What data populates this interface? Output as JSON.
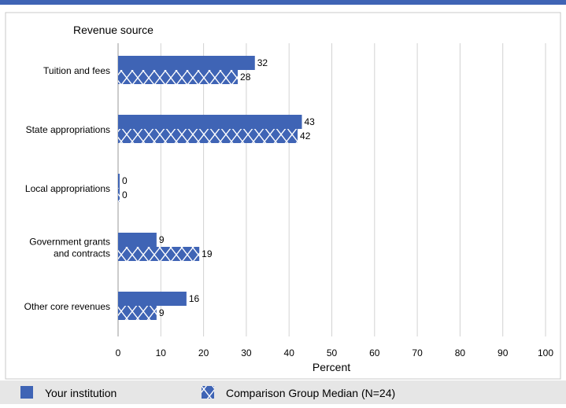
{
  "chart_data": {
    "type": "bar",
    "orientation": "horizontal",
    "title": "Revenue source",
    "xlabel": "Percent",
    "ylabel": "",
    "xlim": [
      0,
      100
    ],
    "xticks": [
      0,
      10,
      20,
      30,
      40,
      50,
      60,
      70,
      80,
      90,
      100
    ],
    "grid": true,
    "legend_position": "bottom",
    "categories": [
      [
        "Tuition and fees"
      ],
      [
        "State appropriations"
      ],
      [
        "Local appropriations"
      ],
      [
        "Government grants",
        "and contracts"
      ],
      [
        "Other core revenues"
      ]
    ],
    "series": [
      {
        "name": "Your institution",
        "values": [
          32,
          43,
          0,
          9,
          16
        ],
        "color": "#3f64b5",
        "pattern": "solid"
      },
      {
        "name": "Comparison Group Median (N=24)",
        "values": [
          28,
          42,
          0,
          19,
          9
        ],
        "color": "#3f64b5",
        "pattern": "cross-hatch"
      }
    ]
  }
}
